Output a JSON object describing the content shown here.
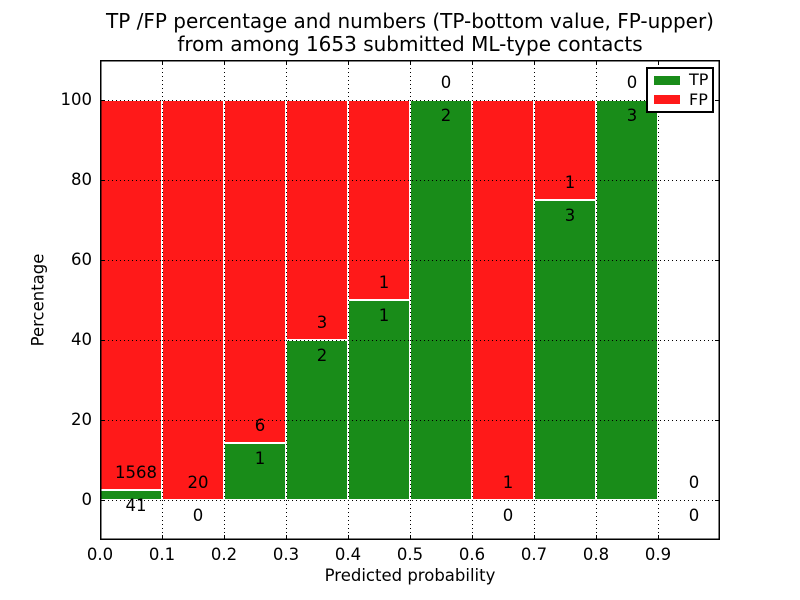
{
  "chart_data": {
    "type": "bar",
    "stacked": true,
    "title_line1": "TP /FP percentage and numbers (TP-bottom value, FP-upper)",
    "title_line2": "from among 1653 submitted ML-type contacts",
    "total_submitted_contacts": 1653,
    "xlabel": "Predicted probability",
    "ylabel": "Percentage",
    "xlim": [
      0.0,
      1.0
    ],
    "ylim": [
      -10,
      110
    ],
    "xtick_labels": [
      "0.0",
      "0.1",
      "0.2",
      "0.3",
      "0.4",
      "0.5",
      "0.6",
      "0.7",
      "0.8",
      "0.9"
    ],
    "ytick_values": [
      0,
      20,
      40,
      60,
      80,
      100
    ],
    "grid": "dotted",
    "bar_edge_color": "#ffffff",
    "legend": {
      "position": "upper-right",
      "items": [
        {
          "label": "TP",
          "color": "#198c19"
        },
        {
          "label": "FP",
          "color": "#ff1919"
        }
      ]
    },
    "bins": [
      {
        "range": [
          0.0,
          0.1
        ],
        "tp": 41,
        "fp": 1568,
        "tp_pct": 2.55
      },
      {
        "range": [
          0.1,
          0.2
        ],
        "tp": 0,
        "fp": 20,
        "tp_pct": 0
      },
      {
        "range": [
          0.2,
          0.3
        ],
        "tp": 1,
        "fp": 6,
        "tp_pct": 14.29
      },
      {
        "range": [
          0.3,
          0.4
        ],
        "tp": 2,
        "fp": 3,
        "tp_pct": 40
      },
      {
        "range": [
          0.4,
          0.5
        ],
        "tp": 1,
        "fp": 1,
        "tp_pct": 50
      },
      {
        "range": [
          0.5,
          0.6
        ],
        "tp": 2,
        "fp": 0,
        "tp_pct": 100
      },
      {
        "range": [
          0.6,
          0.7
        ],
        "tp": 0,
        "fp": 1,
        "tp_pct": 0
      },
      {
        "range": [
          0.7,
          0.8
        ],
        "tp": 3,
        "fp": 1,
        "tp_pct": 75
      },
      {
        "range": [
          0.8,
          0.9
        ],
        "tp": 3,
        "fp": 0,
        "tp_pct": 100
      },
      {
        "range": [
          0.9,
          1.0
        ],
        "tp": 0,
        "fp": 0,
        "tp_pct": null
      }
    ]
  }
}
